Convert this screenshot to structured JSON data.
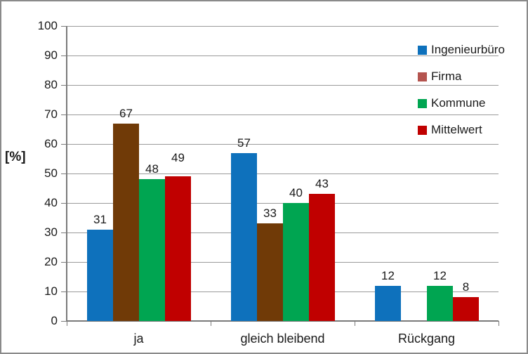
{
  "chart_data": {
    "type": "bar",
    "title": "",
    "ylabel": "[%]",
    "ylim": [
      0,
      100
    ],
    "ytick_step": 10,
    "yticks": [
      0,
      10,
      20,
      30,
      40,
      50,
      60,
      70,
      80,
      90,
      100
    ],
    "grid": true,
    "legend_position": "right",
    "categories": [
      "ja",
      "gleich bleibend",
      "Rückgang"
    ],
    "series": [
      {
        "name": "Ingenieurbüro",
        "bar_color": "#0e71bc",
        "legend_color": "#0e71bc",
        "values": [
          31,
          57,
          12
        ]
      },
      {
        "name": "Firma",
        "bar_color": "#703a07",
        "legend_color": "#b4544f",
        "values": [
          67,
          33,
          null
        ]
      },
      {
        "name": "Kommune",
        "bar_color": "#00a551",
        "legend_color": "#00a551",
        "values": [
          48,
          40,
          12
        ]
      },
      {
        "name": "Mittelwert",
        "bar_color": "#c00000",
        "legend_color": "#c00000",
        "values": [
          49,
          43,
          8
        ]
      }
    ]
  },
  "colors": {
    "background": "#ffffff",
    "frame_border": "#8a8a8a",
    "gridline": "#9a9a9a",
    "axis": "#7a7a7a",
    "text": "#1a1a1a"
  }
}
